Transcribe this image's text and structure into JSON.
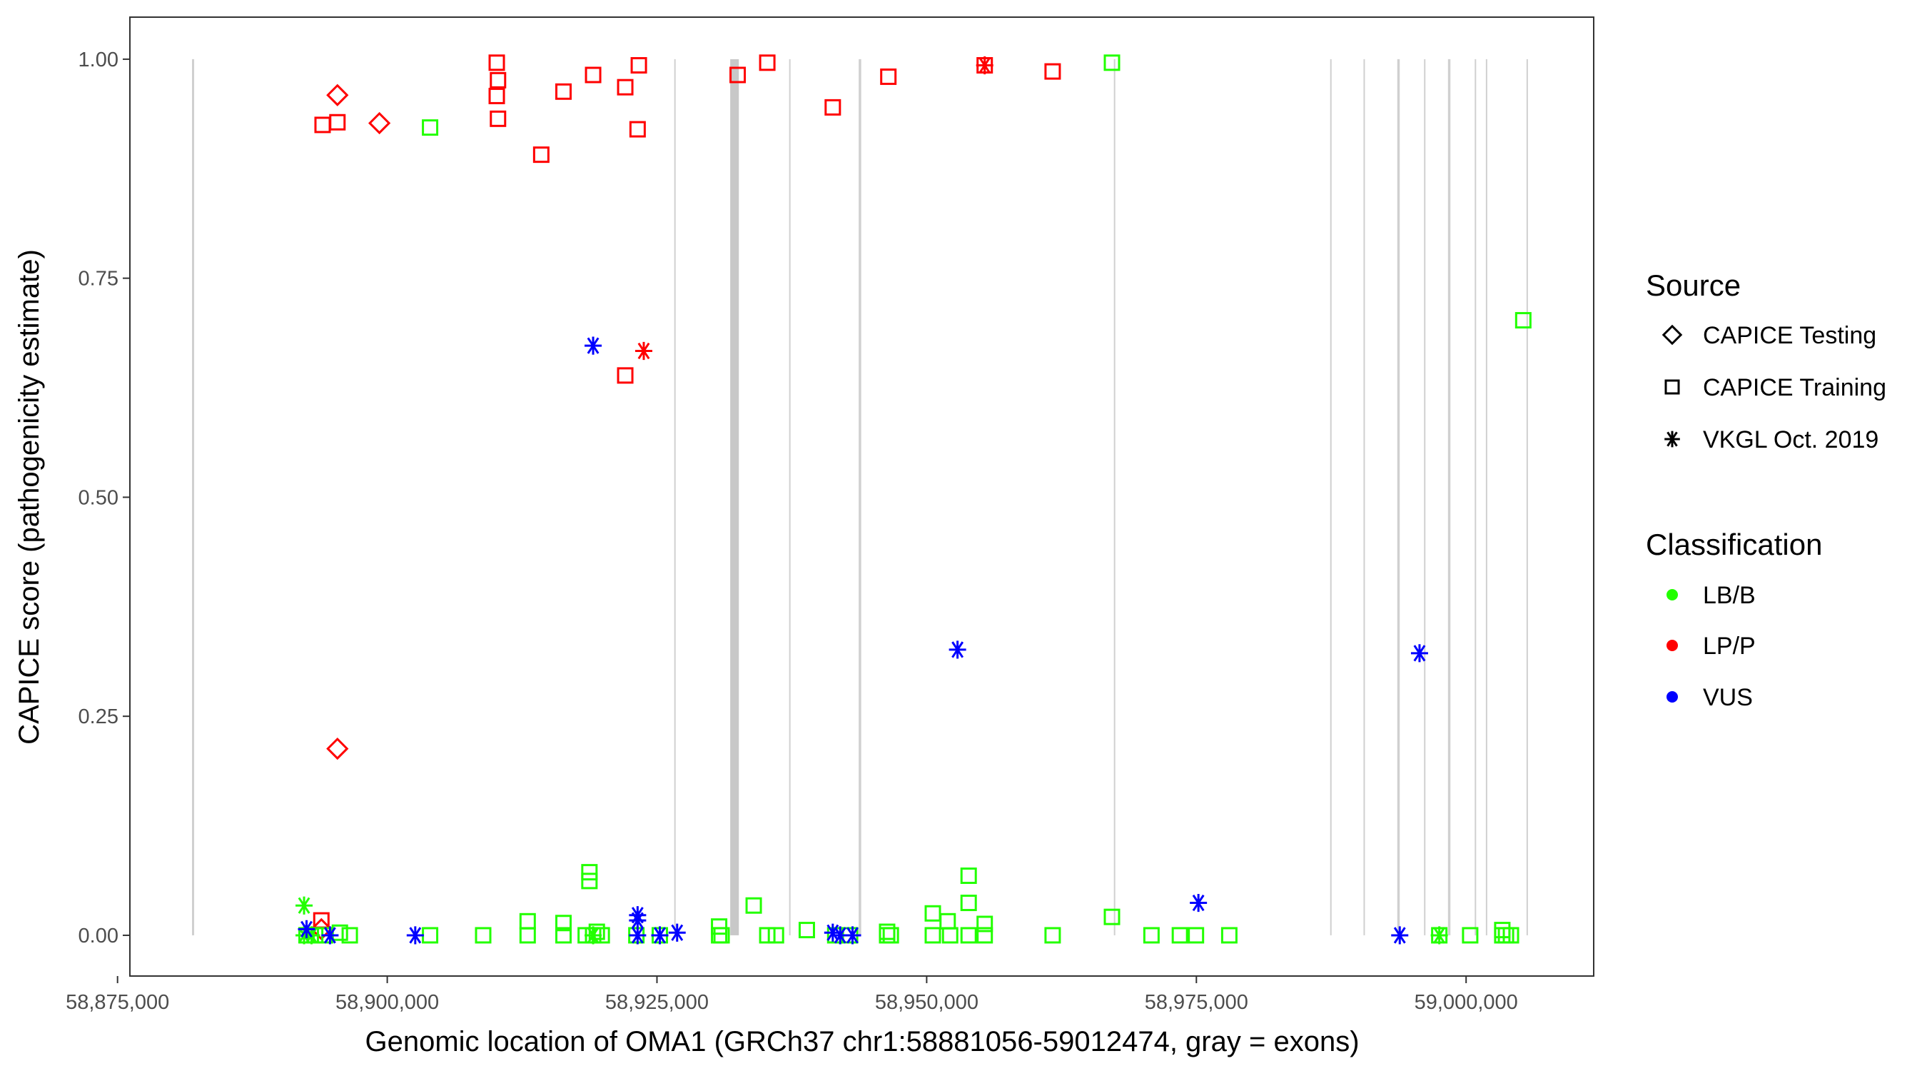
{
  "chart_data": {
    "type": "scatter",
    "xlabel": "Genomic location of OMA1 (GRCh37 chr1:58881056-59012474, gray = exons)",
    "ylabel": "CAPICE score (pathogenicity estimate)",
    "xlim": [
      58876145,
      59011828
    ],
    "ylim": [
      -0.0465,
      1.048
    ],
    "x_ticks": [
      58875000,
      58900000,
      58925000,
      58950000,
      58975000,
      59000000
    ],
    "x_tick_labels": [
      "58,875,000",
      "58,900,000",
      "58,925,000",
      "58,950,000",
      "58,975,000",
      "59,000,000"
    ],
    "y_ticks": [
      0,
      0.25,
      0.5,
      0.75,
      1.0
    ],
    "y_tick_labels": [
      "0.00",
      "0.25",
      "0.50",
      "0.75",
      "1.00"
    ],
    "grid": false,
    "exons": [
      [
        58881900,
        58882100
      ],
      [
        58926600,
        58926700
      ],
      [
        58931790,
        58932590
      ],
      [
        58937250,
        58937330
      ],
      [
        58943700,
        58943930
      ],
      [
        58967350,
        58967450
      ],
      [
        58987400,
        58987480
      ],
      [
        58990490,
        58990570
      ],
      [
        58993620,
        58993850
      ],
      [
        58996100,
        58996180
      ],
      [
        58998320,
        58998550
      ],
      [
        59000800,
        59000880
      ],
      [
        59001830,
        59001910
      ],
      [
        59005600,
        59005680
      ]
    ],
    "legend": {
      "placement": "right",
      "source_title": "Source",
      "source_items": [
        {
          "key": "testing",
          "label": "CAPICE Testing",
          "shape": "diamond"
        },
        {
          "key": "training",
          "label": "CAPICE Training",
          "shape": "square"
        },
        {
          "key": "vkgl",
          "label": "VKGL Oct. 2019",
          "shape": "asterisk"
        }
      ],
      "class_title": "Classification",
      "class_items": [
        {
          "key": "lbb",
          "label": "LB/B",
          "color": "#22ff00"
        },
        {
          "key": "lpp",
          "label": "LP/P",
          "color": "#ff0000"
        },
        {
          "key": "vus",
          "label": "VUS",
          "color": "#0000ff"
        }
      ]
    },
    "series": [
      {
        "name": "LP/P CAPICE Training",
        "source": "training",
        "class": "lpp",
        "points": [
          [
            58894007,
            0.925
          ],
          [
            58895381,
            0.928
          ],
          [
            58910151,
            0.996
          ],
          [
            58910266,
            0.976
          ],
          [
            58910151,
            0.958
          ],
          [
            58910266,
            0.932
          ],
          [
            58914274,
            0.891
          ],
          [
            58916335,
            0.963
          ],
          [
            58919083,
            0.982
          ],
          [
            58922060,
            0.968
          ],
          [
            58923319,
            0.993
          ],
          [
            58923205,
            0.92
          ],
          [
            58932479,
            0.982
          ],
          [
            58935227,
            0.996
          ],
          [
            58941296,
            0.945
          ],
          [
            58946448,
            0.98
          ],
          [
            58955379,
            0.993
          ],
          [
            58961677,
            0.986
          ],
          [
            58922060,
            0.639
          ],
          [
            58893893,
            0.017
          ]
        ]
      },
      {
        "name": "LP/P CAPICE Testing",
        "source": "testing",
        "class": "lpp",
        "points": [
          [
            58895381,
            0.959
          ],
          [
            58899274,
            0.927
          ],
          [
            58895381,
            0.213
          ],
          [
            58893893,
            0.007
          ]
        ]
      },
      {
        "name": "LP/P VKGL",
        "source": "vkgl",
        "class": "lpp",
        "points": [
          [
            58923777,
            0.667
          ],
          [
            58955379,
            0.993
          ]
        ]
      },
      {
        "name": "LB/B CAPICE Training",
        "source": "training",
        "class": "lbb",
        "points": [
          [
            58903969,
            0.922
          ],
          [
            58967173,
            0.996
          ],
          [
            59005301,
            0.702
          ],
          [
            58918739,
            0.072
          ],
          [
            58918739,
            0.062
          ],
          [
            58953891,
            0.068
          ],
          [
            58953891,
            0.037
          ],
          [
            58933968,
            0.034
          ],
          [
            58967173,
            0.021
          ],
          [
            58950570,
            0.025
          ],
          [
            58951944,
            0.016
          ],
          [
            58955379,
            0.013
          ],
          [
            58913014,
            0.016
          ],
          [
            58916335,
            0.014
          ],
          [
            58930762,
            0.01
          ],
          [
            58938891,
            0.006
          ],
          [
            58946334,
            0.004
          ],
          [
            59003355,
            0.006
          ],
          [
            58892519,
            0
          ],
          [
            58893320,
            0
          ],
          [
            58894236,
            0
          ],
          [
            58895610,
            0.003
          ],
          [
            58896526,
            0
          ],
          [
            58903969,
            0
          ],
          [
            58908892,
            0
          ],
          [
            58913014,
            0
          ],
          [
            58916335,
            0
          ],
          [
            58918396,
            0
          ],
          [
            58919083,
            0
          ],
          [
            58919426,
            0.004
          ],
          [
            58919884,
            0
          ],
          [
            58923090,
            0
          ],
          [
            58925266,
            0
          ],
          [
            58930762,
            0
          ],
          [
            58930991,
            0
          ],
          [
            58935227,
            0
          ],
          [
            58936029,
            0
          ],
          [
            58941525,
            0
          ],
          [
            58942899,
            0
          ],
          [
            58946334,
            0
          ],
          [
            58946677,
            0
          ],
          [
            58950570,
            0
          ],
          [
            58952173,
            0
          ],
          [
            58953891,
            0
          ],
          [
            58955379,
            0
          ],
          [
            58961677,
            0
          ],
          [
            58970837,
            0
          ],
          [
            58973470,
            0
          ],
          [
            58974959,
            0
          ],
          [
            58978050,
            0
          ],
          [
            58997515,
            0
          ],
          [
            59000378,
            0
          ],
          [
            59003355,
            0
          ],
          [
            59003698,
            0
          ],
          [
            59004156,
            0
          ]
        ]
      },
      {
        "name": "LB/B VKGL",
        "source": "vkgl",
        "class": "lbb",
        "points": [
          [
            58892290,
            0.034
          ],
          [
            58892290,
            0
          ],
          [
            58892980,
            0
          ],
          [
            58919083,
            0
          ],
          [
            58997515,
            0
          ]
        ]
      },
      {
        "name": "VUS VKGL",
        "source": "vkgl",
        "class": "vus",
        "points": [
          [
            58919083,
            0.673
          ],
          [
            58952860,
            0.326
          ],
          [
            58995683,
            0.322
          ],
          [
            58975188,
            0.037
          ],
          [
            58923205,
            0.023
          ],
          [
            58923205,
            0.017
          ],
          [
            58892519,
            0.007
          ],
          [
            58894694,
            0
          ],
          [
            58902595,
            0
          ],
          [
            58923205,
            0
          ],
          [
            58925266,
            0
          ],
          [
            58926869,
            0.003
          ],
          [
            58941296,
            0.003
          ],
          [
            58941983,
            0
          ],
          [
            58943128,
            0
          ],
          [
            58993851,
            0
          ]
        ]
      }
    ]
  }
}
